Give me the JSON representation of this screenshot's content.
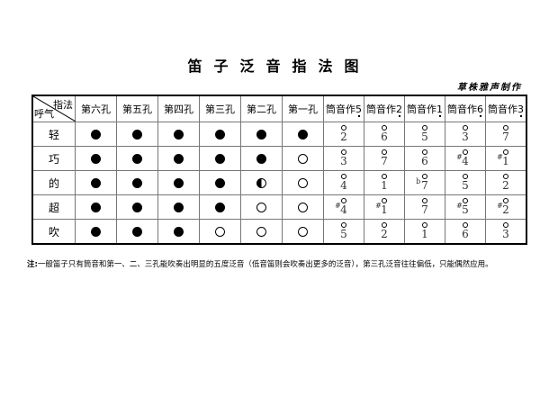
{
  "title": "笛子泛音指法图",
  "author": "草株雅声制作",
  "table": {
    "corner_top": "指法",
    "corner_bottom": "呼气",
    "hole_headers": [
      "第六孔",
      "第五孔",
      "第四孔",
      "第三孔",
      "第二孔",
      "第一孔"
    ],
    "note_header_prefix": "筒音作",
    "note_headers": [
      "5",
      "2",
      "1",
      "6",
      "3"
    ],
    "note_headers_marking": "dot-below (low octave)",
    "breath_labels": [
      "轻",
      "巧",
      "的",
      "超",
      "吹"
    ],
    "rows": [
      {
        "holes": [
          "filled",
          "filled",
          "filled",
          "filled",
          "filled",
          "filled"
        ],
        "notes": [
          {
            "acc": "",
            "num": "2"
          },
          {
            "acc": "",
            "num": "6"
          },
          {
            "acc": "",
            "num": "5"
          },
          {
            "acc": "",
            "num": "3"
          },
          {
            "acc": "",
            "num": "7"
          }
        ]
      },
      {
        "holes": [
          "filled",
          "filled",
          "filled",
          "filled",
          "filled",
          "empty"
        ],
        "notes": [
          {
            "acc": "",
            "num": "3"
          },
          {
            "acc": "",
            "num": "7"
          },
          {
            "acc": "",
            "num": "6"
          },
          {
            "acc": "#",
            "num": "4"
          },
          {
            "acc": "#",
            "num": "1"
          }
        ]
      },
      {
        "holes": [
          "filled",
          "filled",
          "filled",
          "filled",
          "half",
          "empty"
        ],
        "notes": [
          {
            "acc": "",
            "num": "4"
          },
          {
            "acc": "",
            "num": "1"
          },
          {
            "acc": "b",
            "num": "7"
          },
          {
            "acc": "",
            "num": "5"
          },
          {
            "acc": "",
            "num": "2"
          }
        ]
      },
      {
        "holes": [
          "filled",
          "filled",
          "filled",
          "filled",
          "empty",
          "empty"
        ],
        "notes": [
          {
            "acc": "#",
            "num": "4"
          },
          {
            "acc": "#",
            "num": "1"
          },
          {
            "acc": "",
            "num": "7"
          },
          {
            "acc": "#",
            "num": "5"
          },
          {
            "acc": "#",
            "num": "2"
          }
        ]
      },
      {
        "holes": [
          "filled",
          "filled",
          "filled",
          "empty",
          "empty",
          "empty"
        ],
        "notes": [
          {
            "acc": "",
            "num": "5"
          },
          {
            "acc": "",
            "num": "2"
          },
          {
            "acc": "",
            "num": "1"
          },
          {
            "acc": "",
            "num": "6"
          },
          {
            "acc": "",
            "num": "3"
          }
        ]
      }
    ],
    "note_marking": "harmonic-circle-above"
  },
  "footnote_label": "注:",
  "footnote": "一般笛子只有筒音和第一、二、三孔能吹奏出明显的五度泛音（低音笛则会吹奏出更多的泛音），第三孔泛音往往偏低，只能偶然应用。"
}
